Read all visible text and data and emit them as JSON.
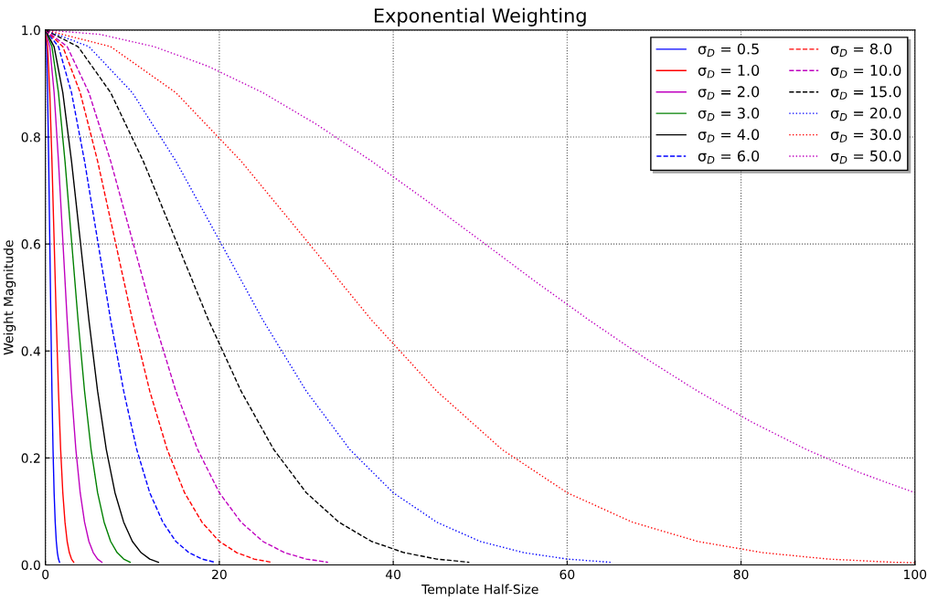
{
  "chart_data": {
    "type": "line",
    "title": "Exponential Weighting",
    "xlabel": "Template Half-Size",
    "ylabel": "Weight Magnitude",
    "xlim": [
      0,
      100
    ],
    "ylim": [
      0,
      1
    ],
    "xticks": [
      0,
      20,
      40,
      60,
      80,
      100
    ],
    "yticks": [
      {
        "value": 0,
        "label": "0.0"
      },
      {
        "value": 0.2,
        "label": "0.2"
      },
      {
        "value": 0.4,
        "label": "0.4"
      },
      {
        "value": 0.6,
        "label": "0.6"
      },
      {
        "value": 0.8,
        "label": "0.8"
      },
      {
        "value": 1,
        "label": "1.0"
      }
    ],
    "grid": true,
    "legend": "top right",
    "marker": "none",
    "series": [
      {
        "name": "σ$_{D}$ = 0.5",
        "color": "#0000ff",
        "line_style": "solid",
        "x": [
          0,
          0.125,
          0.25,
          0.375,
          0.5,
          0.625,
          0.75,
          0.875,
          1,
          1.125,
          1.25,
          1.375,
          1.5,
          1.625
        ],
        "values": [
          1,
          0.969,
          0.883,
          0.755,
          0.607,
          0.458,
          0.325,
          0.216,
          0.135,
          0.08,
          0.044,
          0.023,
          0.011,
          0.005
        ]
      },
      {
        "name": "σ$_{D}$ = 1.0",
        "color": "#ff0000",
        "line_style": "solid",
        "x": [
          0,
          0.25,
          0.5,
          0.75,
          1,
          1.25,
          1.5,
          1.75,
          2,
          2.25,
          2.5,
          2.75,
          3,
          3.25
        ],
        "values": [
          1,
          0.969,
          0.883,
          0.755,
          0.607,
          0.458,
          0.325,
          0.216,
          0.135,
          0.08,
          0.044,
          0.023,
          0.011,
          0.005
        ]
      },
      {
        "name": "σ$_{D}$ = 2.0",
        "color": "#bf00bf",
        "line_style": "solid",
        "x": [
          0,
          0.5,
          1,
          1.5,
          2,
          2.5,
          3,
          3.5,
          4,
          4.5,
          5,
          5.5,
          6,
          6.5
        ],
        "values": [
          1,
          0.969,
          0.883,
          0.755,
          0.607,
          0.458,
          0.325,
          0.216,
          0.135,
          0.08,
          0.044,
          0.023,
          0.011,
          0.005
        ]
      },
      {
        "name": "σ$_{D}$ = 3.0",
        "color": "#008000",
        "line_style": "solid",
        "x": [
          0,
          0.75,
          1.5,
          2.25,
          3,
          3.75,
          4.5,
          5.25,
          6,
          6.75,
          7.5,
          8.25,
          9,
          9.75
        ],
        "values": [
          1,
          0.969,
          0.883,
          0.755,
          0.607,
          0.458,
          0.325,
          0.216,
          0.135,
          0.08,
          0.044,
          0.023,
          0.011,
          0.005
        ]
      },
      {
        "name": "σ$_{D}$ = 4.0",
        "color": "#000000",
        "line_style": "solid",
        "x": [
          0,
          1,
          2,
          3,
          4,
          5,
          6,
          7,
          8,
          9,
          10,
          11,
          12,
          13
        ],
        "values": [
          1,
          0.969,
          0.883,
          0.755,
          0.607,
          0.458,
          0.325,
          0.216,
          0.135,
          0.08,
          0.044,
          0.023,
          0.011,
          0.005
        ]
      },
      {
        "name": "σ$_{D}$ = 6.0",
        "color": "#0000ff",
        "line_style": "dashed",
        "x": [
          0,
          1.5,
          3,
          4.5,
          6,
          7.5,
          9,
          10.5,
          12,
          13.5,
          15,
          16.5,
          18,
          19.5
        ],
        "values": [
          1,
          0.969,
          0.883,
          0.755,
          0.607,
          0.458,
          0.325,
          0.216,
          0.135,
          0.08,
          0.044,
          0.023,
          0.011,
          0.005
        ]
      },
      {
        "name": "σ$_{D}$ = 8.0",
        "color": "#ff0000",
        "line_style": "dashed",
        "x": [
          0,
          2,
          4,
          6,
          8,
          10,
          12,
          14,
          16,
          18,
          20,
          22,
          24,
          26
        ],
        "values": [
          1,
          0.969,
          0.883,
          0.755,
          0.607,
          0.458,
          0.325,
          0.216,
          0.135,
          0.08,
          0.044,
          0.023,
          0.011,
          0.005
        ]
      },
      {
        "name": "σ$_{D}$ = 10.0",
        "color": "#bf00bf",
        "line_style": "dashed",
        "x": [
          0,
          2.5,
          5,
          7.5,
          10,
          12.5,
          15,
          17.5,
          20,
          22.5,
          25,
          27.5,
          30,
          32.5
        ],
        "values": [
          1,
          0.969,
          0.883,
          0.755,
          0.607,
          0.458,
          0.325,
          0.216,
          0.135,
          0.08,
          0.044,
          0.023,
          0.011,
          0.005
        ]
      },
      {
        "name": "σ$_{D}$ = 15.0",
        "color": "#000000",
        "line_style": "dashed",
        "x": [
          0,
          3.75,
          7.5,
          11.25,
          15,
          18.75,
          22.5,
          26.25,
          30,
          33.75,
          37.5,
          41.25,
          45,
          48.75
        ],
        "values": [
          1,
          0.969,
          0.883,
          0.755,
          0.607,
          0.458,
          0.325,
          0.216,
          0.135,
          0.08,
          0.044,
          0.023,
          0.011,
          0.005
        ]
      },
      {
        "name": "σ$_{D}$ = 20.0",
        "color": "#0000ff",
        "line_style": "dotted",
        "x": [
          0,
          5,
          10,
          15,
          20,
          25,
          30,
          35,
          40,
          45,
          50,
          55,
          60,
          65
        ],
        "values": [
          1,
          0.969,
          0.883,
          0.755,
          0.607,
          0.458,
          0.325,
          0.216,
          0.135,
          0.08,
          0.044,
          0.023,
          0.011,
          0.005
        ]
      },
      {
        "name": "σ$_{D}$ = 30.0",
        "color": "#ff0000",
        "line_style": "dotted",
        "x": [
          0,
          7.5,
          15,
          22.5,
          30,
          37.5,
          45,
          52.5,
          60,
          67.5,
          75,
          82.5,
          90,
          97.5,
          100
        ],
        "values": [
          1,
          0.969,
          0.883,
          0.755,
          0.607,
          0.458,
          0.325,
          0.216,
          0.135,
          0.08,
          0.044,
          0.023,
          0.011,
          0.005,
          0.004
        ]
      },
      {
        "name": "σ$_{D}$ = 50.0",
        "color": "#bf00bf",
        "line_style": "dotted",
        "x": [
          0,
          6.25,
          12.5,
          18.75,
          25,
          31.25,
          37.5,
          43.75,
          50,
          56.25,
          62.5,
          68.75,
          75,
          81.25,
          87.5,
          93.75,
          100
        ],
        "values": [
          1,
          0.992,
          0.969,
          0.932,
          0.883,
          0.823,
          0.755,
          0.682,
          0.607,
          0.531,
          0.458,
          0.389,
          0.325,
          0.267,
          0.216,
          0.172,
          0.135
        ]
      }
    ]
  }
}
